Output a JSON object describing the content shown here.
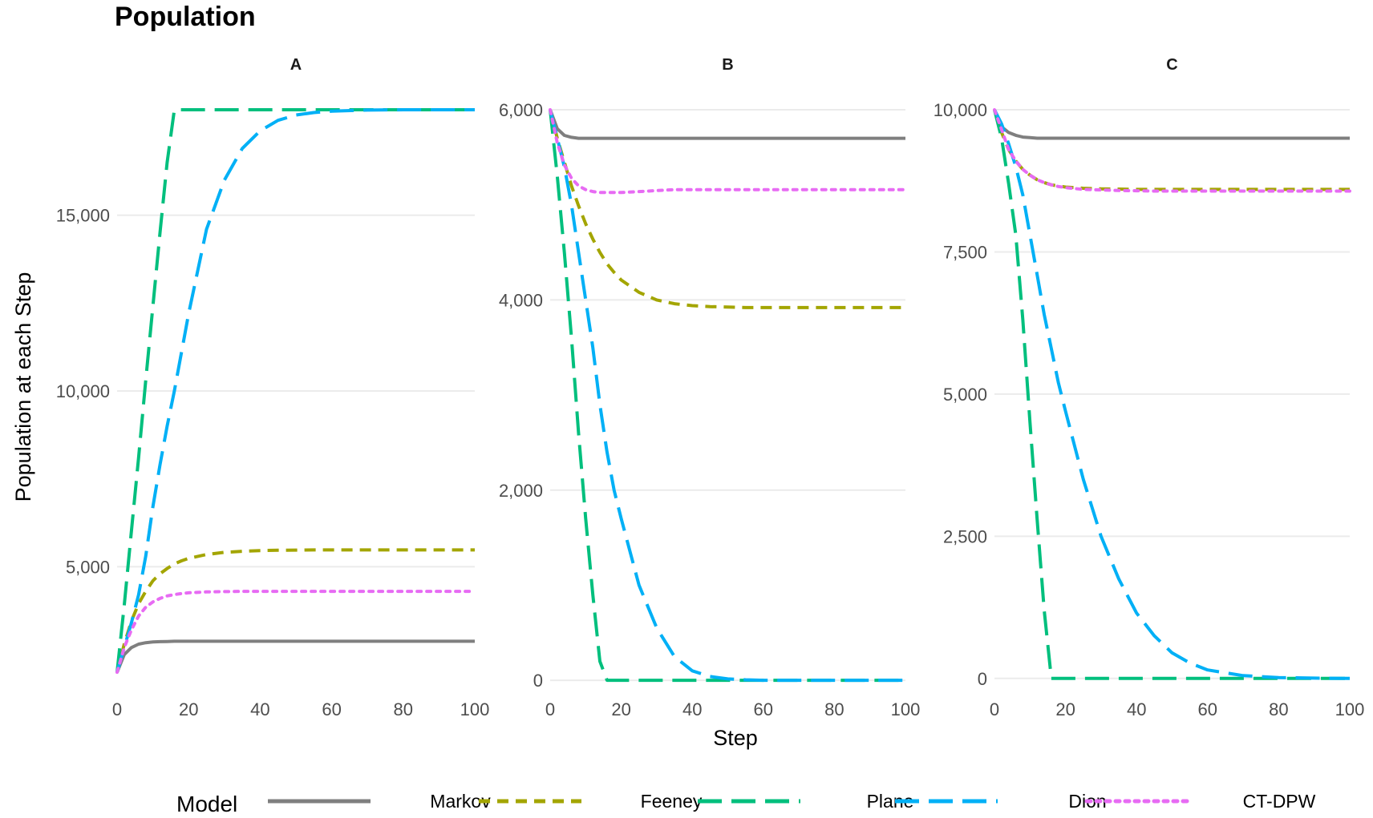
{
  "chart_data": {
    "type": "line",
    "title": "Population",
    "xlabel": "Step",
    "ylabel": "Population at each Step",
    "grid": true,
    "legend": {
      "title": "Model",
      "placement": "bottom",
      "entries": [
        "Markov",
        "Feeney",
        "Plane",
        "Dion",
        "CT-DPW"
      ]
    },
    "colors": {
      "Markov": "#7f7f7f",
      "Feeney": "#a3a500",
      "Plane": "#00bf7d",
      "Dion": "#00b0f6",
      "CT-DPW": "#e76bf3"
    },
    "line_styles": {
      "Markov": "solid",
      "Feeney": "dashed",
      "Plane": "longdash",
      "Dion": "longdash",
      "CT-DPW": "dotted"
    },
    "x": [
      0,
      2,
      4,
      6,
      8,
      10,
      12,
      14,
      16,
      18,
      20,
      25,
      30,
      35,
      40,
      45,
      50,
      55,
      60,
      70,
      80,
      90,
      100
    ],
    "panels": [
      {
        "name": "A",
        "xlim": [
          0,
          100
        ],
        "ylim": [
          1500,
          18000
        ],
        "yticks": [
          5000,
          10000,
          15000
        ],
        "ytick_labels": [
          "5,000",
          "10,000",
          "15,000"
        ],
        "xticks": [
          0,
          20,
          40,
          60,
          80,
          100
        ],
        "xtick_labels": [
          "0",
          "20",
          "40",
          "60",
          "80",
          "100"
        ],
        "series": [
          {
            "name": "Markov",
            "values": [
              2000,
              2500,
              2700,
              2800,
              2840,
              2860,
              2870,
              2875,
              2880,
              2880,
              2880,
              2880,
              2880,
              2880,
              2880,
              2880,
              2880,
              2880,
              2880,
              2880,
              2880,
              2880,
              2880
            ]
          },
          {
            "name": "Feeney",
            "values": [
              2000,
              2800,
              3450,
              3950,
              4300,
              4600,
              4800,
              4950,
              5080,
              5170,
              5240,
              5350,
              5410,
              5440,
              5460,
              5470,
              5475,
              5480,
              5480,
              5480,
              5480,
              5480,
              5480
            ]
          },
          {
            "name": "Plane",
            "values": [
              2000,
              3900,
              6000,
              8100,
              10300,
              12400,
              14500,
              16500,
              18000,
              18000,
              18000,
              18000,
              18000,
              18000,
              18000,
              18000,
              18000,
              18000,
              18000,
              18000,
              18000,
              18000,
              18000
            ]
          },
          {
            "name": "Dion",
            "values": [
              2000,
              2700,
              3400,
              4200,
              5300,
              6700,
              7900,
              9000,
              10000,
              11100,
              12200,
              14600,
              16000,
              16900,
              17400,
              17700,
              17850,
              17920,
              17960,
              17990,
              18000,
              18000,
              18000
            ]
          },
          {
            "name": "CT-DPW",
            "values": [
              2000,
              2700,
              3200,
              3600,
              3850,
              4000,
              4100,
              4170,
              4210,
              4240,
              4260,
              4285,
              4295,
              4300,
              4300,
              4300,
              4300,
              4300,
              4300,
              4300,
              4300,
              4300,
              4300
            ]
          }
        ]
      },
      {
        "name": "B",
        "xlim": [
          0,
          100
        ],
        "ylim": [
          -100,
          6000
        ],
        "yticks": [
          0,
          2000,
          4000,
          6000
        ],
        "ytick_labels": [
          "0",
          "2,000",
          "4,000",
          "6,000"
        ],
        "xticks": [
          0,
          20,
          40,
          60,
          80,
          100
        ],
        "xtick_labels": [
          "0",
          "20",
          "40",
          "60",
          "80",
          "100"
        ],
        "series": [
          {
            "name": "Markov",
            "values": [
              6000,
              5800,
              5730,
              5710,
              5700,
              5700,
              5700,
              5700,
              5700,
              5700,
              5700,
              5700,
              5700,
              5700,
              5700,
              5700,
              5700,
              5700,
              5700,
              5700,
              5700,
              5700,
              5700
            ]
          },
          {
            "name": "Feeney",
            "values": [
              6000,
              5700,
              5450,
              5200,
              4990,
              4800,
              4640,
              4500,
              4380,
              4290,
              4210,
              4080,
              4000,
              3960,
              3940,
              3930,
              3925,
              3920,
              3920,
              3920,
              3920,
              3920,
              3920
            ]
          },
          {
            "name": "Plane",
            "values": [
              6000,
              5300,
              4500,
              3600,
              2600,
              1700,
              900,
              200,
              0,
              0,
              0,
              0,
              0,
              0,
              0,
              0,
              0,
              0,
              0,
              0,
              0,
              0,
              0
            ]
          },
          {
            "name": "Dion",
            "values": [
              6000,
              5700,
              5400,
              5000,
              4500,
              4000,
              3500,
              2900,
              2400,
              2000,
              1700,
              1000,
              550,
              250,
              100,
              40,
              15,
              5,
              0,
              0,
              0,
              0,
              0
            ]
          },
          {
            "name": "CT-DPW",
            "values": [
              6000,
              5650,
              5420,
              5280,
              5200,
              5160,
              5140,
              5130,
              5130,
              5130,
              5130,
              5140,
              5150,
              5160,
              5160,
              5160,
              5160,
              5160,
              5160,
              5160,
              5160,
              5160,
              5160
            ]
          }
        ]
      },
      {
        "name": "C",
        "xlim": [
          0,
          100
        ],
        "ylim": [
          -200,
          10000
        ],
        "yticks": [
          0,
          2500,
          5000,
          7500,
          10000
        ],
        "ytick_labels": [
          "0",
          "2,500",
          "5,000",
          "7,500",
          "10,000"
        ],
        "xticks": [
          0,
          20,
          40,
          60,
          80,
          100
        ],
        "xtick_labels": [
          "0",
          "20",
          "40",
          "60",
          "80",
          "100"
        ],
        "series": [
          {
            "name": "Markov",
            "values": [
              10000,
              9700,
              9600,
              9550,
              9520,
              9510,
              9500,
              9500,
              9500,
              9500,
              9500,
              9500,
              9500,
              9500,
              9500,
              9500,
              9500,
              9500,
              9500,
              9500,
              9500,
              9500,
              9500
            ]
          },
          {
            "name": "Feeney",
            "values": [
              10000,
              9600,
              9300,
              9100,
              8950,
              8850,
              8770,
              8720,
              8680,
              8660,
              8640,
              8620,
              8610,
              8605,
              8600,
              8600,
              8600,
              8600,
              8600,
              8600,
              8600,
              8600,
              8600
            ]
          },
          {
            "name": "Plane",
            "values": [
              10000,
              9500,
              8700,
              7800,
              6300,
              4500,
              2800,
              1200,
              0,
              0,
              0,
              0,
              0,
              0,
              0,
              0,
              0,
              0,
              0,
              0,
              0,
              0,
              0
            ]
          },
          {
            "name": "Dion",
            "values": [
              10000,
              9750,
              9400,
              9000,
              8500,
              7800,
              7100,
              6400,
              5800,
              5200,
              4700,
              3500,
              2500,
              1750,
              1150,
              750,
              450,
              270,
              150,
              50,
              15,
              5,
              0
            ]
          },
          {
            "name": "CT-DPW",
            "values": [
              10000,
              9650,
              9300,
              9100,
              8950,
              8850,
              8770,
              8720,
              8680,
              8650,
              8630,
              8600,
              8590,
              8580,
              8575,
              8570,
              8570,
              8570,
              8570,
              8570,
              8570,
              8570,
              8570
            ]
          }
        ]
      }
    ]
  }
}
